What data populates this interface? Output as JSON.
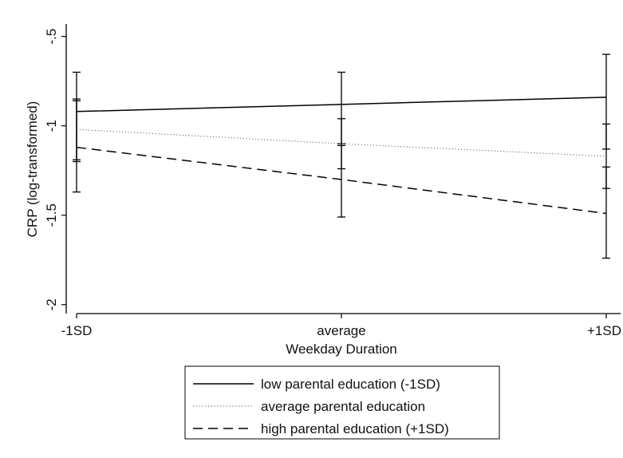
{
  "chart_data": {
    "type": "line",
    "xlabel": "Weekday Duration",
    "ylabel": "CRP (log-transformed)",
    "categories": [
      "-1SD",
      "average",
      "+1SD"
    ],
    "x_tick_labels": [
      "-1SD",
      "average",
      "+1SD"
    ],
    "y_ticks": [
      -0.5,
      -1,
      -1.5,
      -2
    ],
    "y_tick_labels": [
      "-.5",
      "-1",
      "-1.5",
      "-2"
    ],
    "ylim": [
      -2.05,
      -0.43
    ],
    "grid": false,
    "legend_position": "bottom",
    "series": [
      {
        "name": "low parental education (-1SD)",
        "line_style": "solid",
        "values": [
          -0.92,
          -0.88,
          -0.84
        ],
        "ci_low": [
          -1.2,
          -1.1,
          -1.13
        ],
        "ci_high": [
          -0.7,
          -0.7,
          -0.6
        ]
      },
      {
        "name": "average parental education",
        "line_style": "dotted",
        "values": [
          -1.02,
          -1.1,
          -1.17
        ],
        "ci_low": [
          -1.19,
          -1.24,
          -1.35
        ],
        "ci_high": [
          -0.85,
          -0.96,
          -0.99
        ]
      },
      {
        "name": "high parental education (+1SD)",
        "line_style": "dashed",
        "values": [
          -1.12,
          -1.3,
          -1.49
        ],
        "ci_low": [
          -1.37,
          -1.51,
          -1.74
        ],
        "ci_high": [
          -0.86,
          -1.11,
          -1.23
        ]
      }
    ]
  }
}
